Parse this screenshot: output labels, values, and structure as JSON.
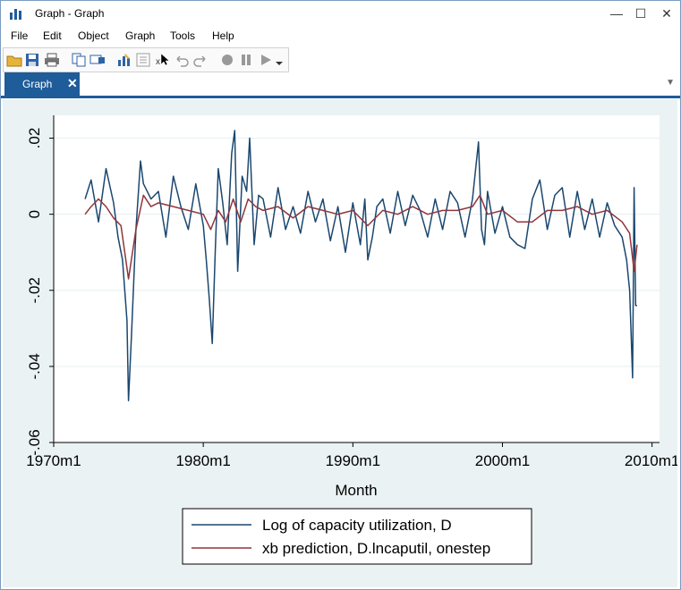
{
  "window": {
    "title": "Graph - Graph",
    "minimize": "—",
    "maximize": "☐",
    "close": "✕"
  },
  "menu": [
    "File",
    "Edit",
    "Object",
    "Graph",
    "Tools",
    "Help"
  ],
  "toolbar": {
    "icons": [
      "open-icon",
      "save-icon",
      "print-icon",
      "copy-icon",
      "rename-icon",
      "graph-editor-icon",
      "object-browser-icon",
      "close-editor-icon",
      "undo-icon",
      "redo-icon",
      "record-icon",
      "pause-icon",
      "play-icon",
      "dropdown-icon"
    ]
  },
  "tabs": [
    {
      "label": "Graph",
      "close": "✕"
    }
  ],
  "tab_dropdown": "▼",
  "colors": {
    "accent": "#1e5c9a",
    "series1": "#1a476f",
    "series2": "#90353b",
    "plot_bg": "#ffffff",
    "graph_bg": "#eaf2f3"
  },
  "chart_data": {
    "type": "line",
    "xlabel": "Month",
    "ylabel": "",
    "xlim": [
      1970,
      2010.5
    ],
    "ylim": [
      -0.06,
      0.026
    ],
    "xticks": [
      1970,
      1980,
      1990,
      2000,
      2010
    ],
    "xticklabels": [
      "1970m1",
      "1980m1",
      "1990m1",
      "2000m1",
      "2010m1"
    ],
    "yticks": [
      0.02,
      0,
      -0.02,
      -0.04,
      -0.06
    ],
    "yticklabels": [
      ".02",
      "0",
      "-.02",
      "-.04",
      "-.06"
    ],
    "grid": true,
    "legend_position": "bottom",
    "series": [
      {
        "name": "Log of capacity utilization, D",
        "x": [
          1972.1,
          1972.5,
          1973.0,
          1973.5,
          1974.0,
          1974.3,
          1974.6,
          1974.9,
          1975.0,
          1975.2,
          1975.5,
          1975.8,
          1976.0,
          1976.5,
          1977.0,
          1977.5,
          1978.0,
          1978.5,
          1979.0,
          1979.5,
          1980.0,
          1980.2,
          1980.4,
          1980.6,
          1980.8,
          1981.0,
          1981.3,
          1981.6,
          1981.9,
          1982.1,
          1982.3,
          1982.6,
          1982.9,
          1983.1,
          1983.4,
          1983.7,
          1984.0,
          1984.5,
          1985.0,
          1985.5,
          1986.0,
          1986.5,
          1987.0,
          1987.5,
          1988.0,
          1988.5,
          1989.0,
          1989.5,
          1990.0,
          1990.5,
          1990.8,
          1991.0,
          1991.3,
          1991.6,
          1992.0,
          1992.5,
          1993.0,
          1993.5,
          1994.0,
          1994.5,
          1995.0,
          1995.5,
          1996.0,
          1996.5,
          1997.0,
          1997.5,
          1998.0,
          1998.4,
          1998.6,
          1998.8,
          1999.0,
          1999.5,
          2000.0,
          2000.5,
          2001.0,
          2001.5,
          2002.0,
          2002.5,
          2003.0,
          2003.5,
          2004.0,
          2004.5,
          2005.0,
          2005.5,
          2006.0,
          2006.5,
          2007.0,
          2007.5,
          2008.0,
          2008.3,
          2008.5,
          2008.7,
          2008.8,
          2008.9,
          2009.0
        ],
        "y": [
          0.004,
          0.009,
          -0.002,
          0.012,
          0.003,
          -0.006,
          -0.012,
          -0.028,
          -0.049,
          -0.032,
          -0.004,
          0.014,
          0.008,
          0.004,
          0.006,
          -0.006,
          0.01,
          0.002,
          -0.004,
          0.008,
          -0.003,
          -0.012,
          -0.022,
          -0.034,
          -0.01,
          0.012,
          0.003,
          -0.008,
          0.016,
          0.022,
          -0.015,
          0.01,
          0.006,
          0.02,
          -0.008,
          0.005,
          0.004,
          -0.006,
          0.007,
          -0.004,
          0.002,
          -0.005,
          0.006,
          -0.002,
          0.004,
          -0.007,
          0.002,
          -0.01,
          0.003,
          -0.008,
          0.004,
          -0.012,
          -0.006,
          0.002,
          0.004,
          -0.005,
          0.006,
          -0.003,
          0.005,
          0.001,
          -0.006,
          0.004,
          -0.004,
          0.006,
          0.003,
          -0.006,
          0.004,
          0.019,
          -0.004,
          -0.008,
          0.006,
          -0.005,
          0.002,
          -0.006,
          -0.008,
          -0.009,
          0.004,
          0.009,
          -0.004,
          0.005,
          0.007,
          -0.006,
          0.006,
          -0.004,
          0.004,
          -0.006,
          0.003,
          -0.003,
          -0.006,
          -0.012,
          -0.02,
          -0.043,
          0.007,
          -0.024,
          -0.024
        ]
      },
      {
        "name": "xb prediction, D.lncaputil, onestep",
        "x": [
          1972.1,
          1972.5,
          1973.0,
          1973.5,
          1974.0,
          1974.5,
          1975.0,
          1975.5,
          1976.0,
          1976.5,
          1977.0,
          1978.0,
          1979.0,
          1980.0,
          1980.5,
          1981.0,
          1981.5,
          1982.0,
          1982.5,
          1983.0,
          1983.5,
          1984.0,
          1985.0,
          1986.0,
          1987.0,
          1988.0,
          1989.0,
          1990.0,
          1991.0,
          1992.0,
          1993.0,
          1994.0,
          1995.0,
          1996.0,
          1997.0,
          1998.0,
          1998.5,
          1999.0,
          2000.0,
          2001.0,
          2002.0,
          2003.0,
          2004.0,
          2005.0,
          2006.0,
          2007.0,
          2008.0,
          2008.5,
          2008.8,
          2009.0
        ],
        "y": [
          0.0,
          0.002,
          0.004,
          0.002,
          -0.001,
          -0.003,
          -0.017,
          -0.004,
          0.005,
          0.002,
          0.003,
          0.002,
          0.001,
          0.0,
          -0.004,
          0.001,
          -0.002,
          0.004,
          -0.002,
          0.004,
          0.002,
          0.001,
          0.002,
          -0.001,
          0.002,
          0.001,
          0.0,
          0.001,
          -0.003,
          0.001,
          0.0,
          0.002,
          0.0,
          0.001,
          0.001,
          0.002,
          0.005,
          0.0,
          0.001,
          -0.002,
          -0.002,
          0.001,
          0.001,
          0.002,
          0.0,
          0.001,
          -0.002,
          -0.005,
          -0.015,
          -0.008
        ]
      }
    ]
  }
}
